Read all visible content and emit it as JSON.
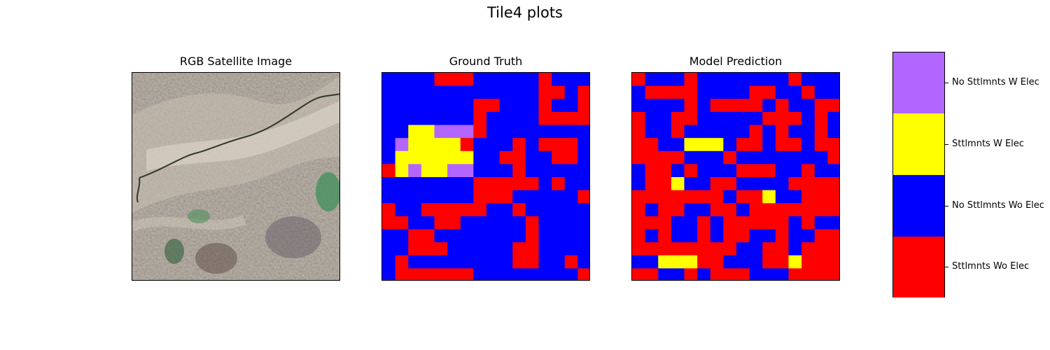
{
  "figure": {
    "title": "Tile4 plots"
  },
  "panels": {
    "rgb": {
      "title": "RGB Satellite Image"
    },
    "ground_truth": {
      "title": "Ground Truth"
    },
    "prediction": {
      "title": "Model Prediction"
    }
  },
  "colors": {
    "0": "#ff0000",
    "1": "#0000ff",
    "2": "#ffff00",
    "3": "#b266ff"
  },
  "chart_data": {
    "type": "heatmap",
    "grid_size": 16,
    "class_codes": {
      "0": "Sttlmnts Wo Elec",
      "1": "No Sttlmnts Wo Elec",
      "2": "Sttlmnts W Elec",
      "3": "No Sttlmnts W Elec"
    },
    "colorbar": {
      "labels": [
        "Sttlmnts Wo Elec",
        "No Sttlmnts Wo Elec",
        "Sttlmnts W Elec",
        "No Sttlmnts W Elec"
      ]
    },
    "ground_truth": [
      "1111000111110111",
      "1111111111110010",
      "1111111001110110",
      "1111111011110000",
      "1122333011111111",
      "1322220111010001",
      "1222222110011001",
      "0232233111011111",
      "1111111000001011",
      "1111111000111110",
      "0110000011011111",
      "0011001111101111",
      "1100111111101111",
      "1100011111001111",
      "1011111111001101",
      "1000000111111110"
    ],
    "prediction": [
      "0111011111110111",
      "1000011110011011",
      "1111010000101100",
      "0110011111000101",
      "0110111110101101",
      "0011222100100100",
      "0000111011111110",
      "1001011100011011",
      "1002110011110000",
      "0000000100211000",
      "0100110010000000",
      "0001101000001011",
      "0101101001101100",
      "0000000011001000",
      "1122200111002000",
      "0011010001110000"
    ]
  }
}
